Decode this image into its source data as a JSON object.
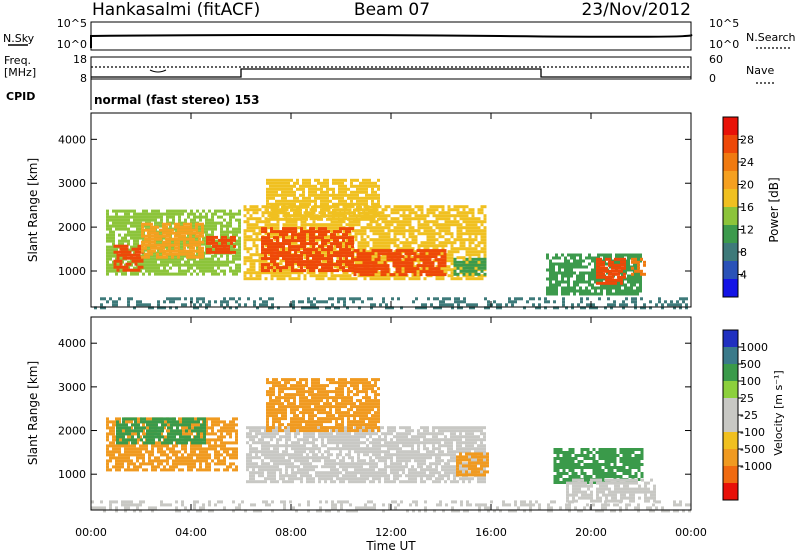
{
  "header": {
    "station": "Hankasalmi (fitACF)",
    "beam": "Beam 07",
    "date": "23/Nov/2012"
  },
  "noise_panel": {
    "left_label": "N.Sky",
    "left_ticks": [
      "10^5",
      "10^0"
    ],
    "right_label": "N.Search",
    "right_ticks": [
      "10^5",
      "10^0"
    ]
  },
  "freq_panel": {
    "left_label_top": "Freq.",
    "left_label_unit": "[MHz]",
    "left_ticks": [
      "18",
      "8"
    ],
    "right_label": "Nave",
    "right_ticks": [
      "60",
      "0"
    ]
  },
  "cpid": {
    "label": "CPID",
    "mode": "normal (fast stereo) 153"
  },
  "colors": {
    "power_scale": [
      "#1414e6",
      "#2a52b8",
      "#3e7a7a",
      "#3c9a4c",
      "#8cc43a",
      "#f0c020",
      "#f5a020",
      "#f07a10",
      "#ee4808",
      "#e81208"
    ],
    "velocity_scale": [
      "#2030c0",
      "#3a7a8a",
      "#3a9a4a",
      "#8cd03c",
      "#c8c8c4",
      "#c8c8c4",
      "#f0c020",
      "#f09a20",
      "#f06a10",
      "#e81008"
    ]
  },
  "chart_data": [
    {
      "type": "heatmap",
      "title": "",
      "xlabel": "",
      "ylabel": "Slant Range [km]",
      "x_ticks": [
        "00:00",
        "04:00",
        "08:00",
        "12:00",
        "16:00",
        "20:00",
        "00:00"
      ],
      "x_range_hours": [
        0,
        24
      ],
      "y_ticks": [
        "1000",
        "2000",
        "3000",
        "4000"
      ],
      "y_range_km": [
        180,
        4600
      ],
      "colorbar": {
        "label": "Power [dB]",
        "ticks": [
          "4",
          "8",
          "12",
          "16",
          "20",
          "24",
          "28"
        ],
        "range": [
          0,
          32
        ]
      },
      "regions": [
        {
          "t0": 0.6,
          "t1": 5.9,
          "r0": 900,
          "r1": 2400,
          "value": 14
        },
        {
          "t0": 0.9,
          "t1": 2.0,
          "r0": 1050,
          "r1": 1600,
          "value": 26
        },
        {
          "t0": 2.0,
          "t1": 4.5,
          "r0": 1300,
          "r1": 2100,
          "value": 20
        },
        {
          "t0": 4.6,
          "t1": 5.8,
          "r0": 1450,
          "r1": 1800,
          "value": 26
        },
        {
          "t0": 6.1,
          "t1": 15.8,
          "r0": 850,
          "r1": 2500,
          "value": 16
        },
        {
          "t0": 6.8,
          "t1": 10.5,
          "r0": 1000,
          "r1": 2000,
          "value": 26
        },
        {
          "t0": 10.5,
          "t1": 14.2,
          "r0": 900,
          "r1": 1500,
          "value": 28
        },
        {
          "t0": 7.0,
          "t1": 11.5,
          "r0": 2200,
          "r1": 3100,
          "value": 18
        },
        {
          "t0": 14.5,
          "t1": 15.8,
          "r0": 900,
          "r1": 1300,
          "value": 12
        },
        {
          "t0": 18.2,
          "t1": 22.0,
          "r0": 500,
          "r1": 1400,
          "value": 10
        },
        {
          "t0": 20.2,
          "t1": 21.4,
          "r0": 700,
          "r1": 1300,
          "value": 26
        },
        {
          "t0": 21.6,
          "t1": 22.2,
          "r0": 900,
          "r1": 1300,
          "value": 24
        },
        {
          "t0": 0.0,
          "t1": 24.0,
          "r0": 180,
          "r1": 400,
          "value": 8
        }
      ]
    },
    {
      "type": "heatmap",
      "title": "",
      "xlabel": "Time UT",
      "ylabel": "Slant Range [km]",
      "x_ticks": [
        "00:00",
        "04:00",
        "08:00",
        "12:00",
        "16:00",
        "20:00",
        "00:00"
      ],
      "x_range_hours": [
        0,
        24
      ],
      "y_ticks": [
        "1000",
        "2000",
        "3000",
        "4000"
      ],
      "y_range_km": [
        180,
        4600
      ],
      "colorbar": {
        "label": "Velocity [m s⁻¹]",
        "ticks": [
          "1000",
          "500",
          "100",
          "25",
          "-25",
          "-100",
          "-500",
          "-1000"
        ]
      },
      "regions": [
        {
          "t0": 0.6,
          "t1": 5.8,
          "r0": 1100,
          "r1": 2300,
          "value": -300
        },
        {
          "t0": 1.0,
          "t1": 4.5,
          "r0": 1700,
          "r1": 2300,
          "value": 150
        },
        {
          "t0": 6.2,
          "t1": 15.8,
          "r0": 850,
          "r1": 2100,
          "value": 0
        },
        {
          "t0": 7.0,
          "t1": 11.5,
          "r0": 2000,
          "r1": 3200,
          "value": -300
        },
        {
          "t0": 14.6,
          "t1": 15.8,
          "r0": 1000,
          "r1": 1500,
          "value": -500
        },
        {
          "t0": 18.5,
          "t1": 22.0,
          "r0": 800,
          "r1": 1600,
          "value": 300
        },
        {
          "t0": 19.0,
          "t1": 22.5,
          "r0": 400,
          "r1": 900,
          "value": 0
        },
        {
          "t0": 0.0,
          "t1": 24.0,
          "r0": 180,
          "r1": 400,
          "value": -25
        }
      ]
    }
  ]
}
